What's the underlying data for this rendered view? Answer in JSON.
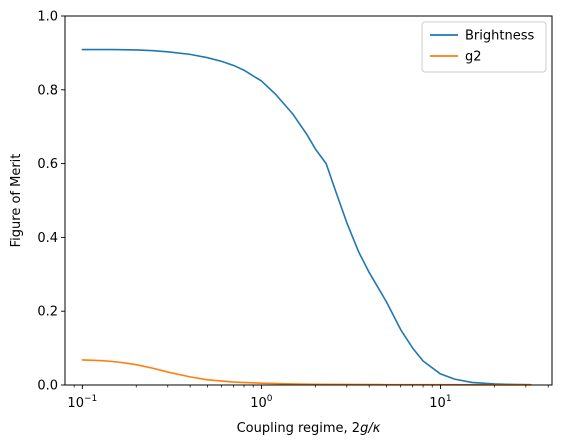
{
  "chart_data": {
    "type": "line",
    "title": "",
    "xlabel_prefix": "Coupling regime, 2",
    "xlabel_math": "g/κ",
    "ylabel": "Figure of Merit",
    "xscale": "log",
    "xlim": [
      0.08,
      42
    ],
    "ylim": [
      0,
      1
    ],
    "x_ticks": [
      {
        "value": 0.1,
        "base": "10",
        "exp": "−1"
      },
      {
        "value": 1,
        "base": "10",
        "exp": "0"
      },
      {
        "value": 10,
        "base": "10",
        "exp": "1"
      }
    ],
    "y_ticks": [
      {
        "value": 0.0,
        "label": "0.0"
      },
      {
        "value": 0.2,
        "label": "0.2"
      },
      {
        "value": 0.4,
        "label": "0.4"
      },
      {
        "value": 0.6,
        "label": "0.6"
      },
      {
        "value": 0.8,
        "label": "0.8"
      },
      {
        "value": 1.0,
        "label": "1.0"
      }
    ],
    "grid": false,
    "legend_position": "top-right",
    "series": [
      {
        "name": "Brightness",
        "color": "#1f77b4",
        "x": [
          0.1,
          0.15,
          0.2,
          0.25,
          0.3,
          0.4,
          0.5,
          0.6,
          0.7,
          0.8,
          1.0,
          1.2,
          1.5,
          1.8,
          2.0,
          2.3,
          2.6,
          3.0,
          3.5,
          4.0,
          5.0,
          6.0,
          7.0,
          8.0,
          10.0,
          12.0,
          15.0,
          20.0,
          25.0,
          32.0
        ],
        "values": [
          0.909,
          0.909,
          0.908,
          0.906,
          0.903,
          0.896,
          0.887,
          0.877,
          0.866,
          0.853,
          0.824,
          0.788,
          0.734,
          0.678,
          0.64,
          0.6,
          0.525,
          0.44,
          0.36,
          0.305,
          0.225,
          0.15,
          0.1,
          0.065,
          0.03,
          0.016,
          0.007,
          0.003,
          0.0015,
          0.0008
        ]
      },
      {
        "name": "g2",
        "color": "#ff7f0e",
        "x": [
          0.1,
          0.13,
          0.16,
          0.2,
          0.25,
          0.3,
          0.4,
          0.5,
          0.7,
          1.0,
          1.5,
          2.0,
          3.0,
          5.0,
          10.0,
          32.0
        ],
        "values": [
          0.068,
          0.066,
          0.062,
          0.055,
          0.045,
          0.035,
          0.022,
          0.014,
          0.008,
          0.005,
          0.003,
          0.002,
          0.0015,
          0.001,
          0.0008,
          0.0005
        ]
      }
    ]
  }
}
